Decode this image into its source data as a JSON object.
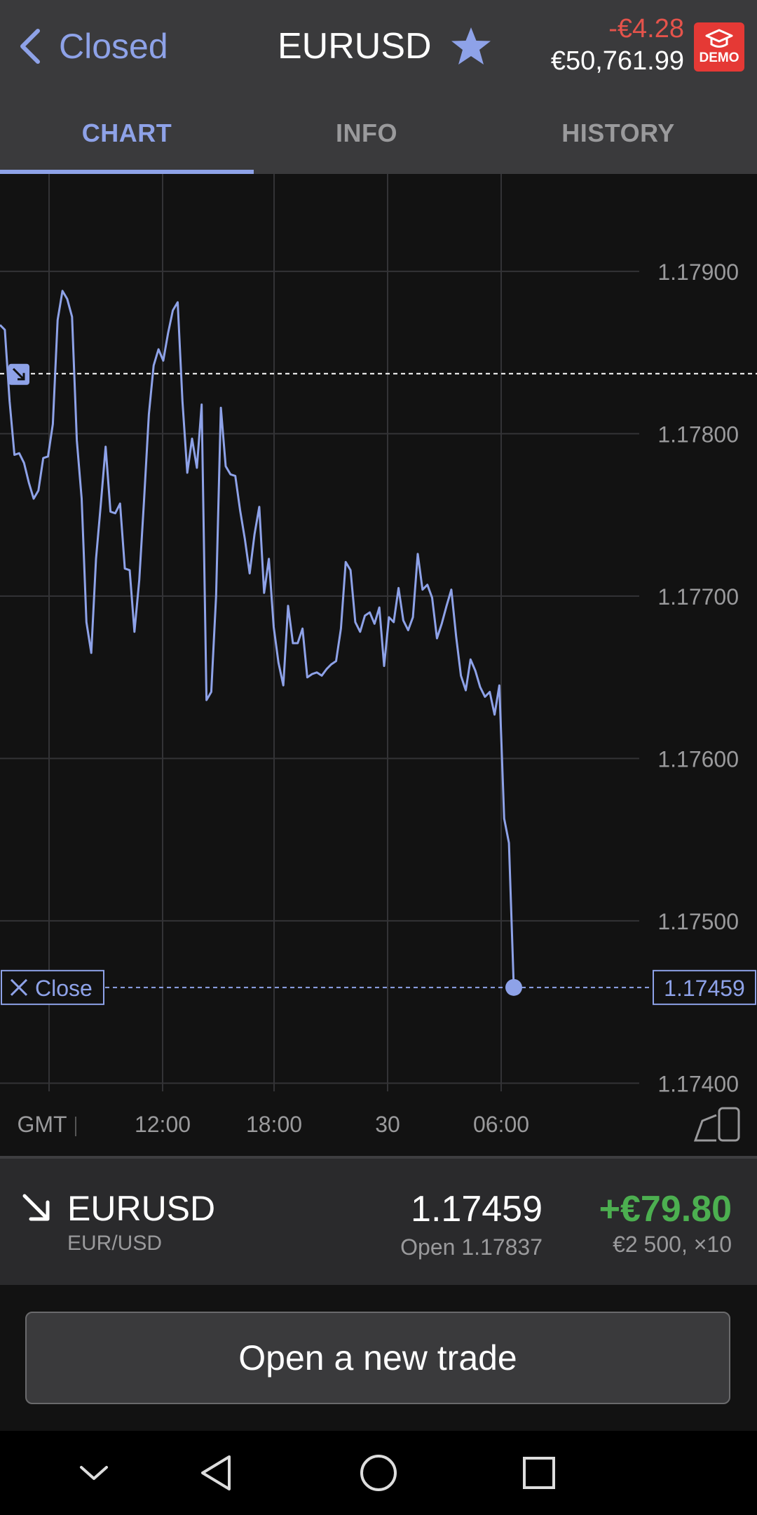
{
  "header": {
    "back_label": "Closed",
    "symbol": "EURUSD",
    "pl": "-€4.28",
    "balance": "€50,761.99",
    "demo_label": "DEMO"
  },
  "tabs": [
    {
      "label": "CHART",
      "active": true
    },
    {
      "label": "INFO",
      "active": false
    },
    {
      "label": "HISTORY",
      "active": false
    }
  ],
  "chart_data": {
    "type": "line",
    "y_ticks": [
      "1.17900",
      "1.17800",
      "1.17700",
      "1.17600",
      "1.17500",
      "1.17400"
    ],
    "x_ticks": [
      "GMT",
      "12:00",
      "18:00",
      "30",
      "06:00"
    ],
    "ylim": [
      1.17395,
      1.1796
    ],
    "open_level": 1.17837,
    "current_level": 1.17459,
    "current_label": "1.17459",
    "close_label": "Close",
    "series": [
      {
        "values": [
          1.17867,
          1.17864,
          1.1782,
          1.17787,
          1.17788,
          1.17782,
          1.1777,
          1.1776,
          1.17765,
          1.17785,
          1.17786,
          1.17806,
          1.1787,
          1.17888,
          1.17883,
          1.17872,
          1.17796,
          1.1776,
          1.17684,
          1.17665,
          1.17723,
          1.17757,
          1.17792,
          1.17752,
          1.17751,
          1.17757,
          1.17717,
          1.17716,
          1.17678,
          1.1771,
          1.17759,
          1.17812,
          1.17842,
          1.17852,
          1.17845,
          1.17862,
          1.17876,
          1.17881,
          1.1782,
          1.17776,
          1.17797,
          1.17779,
          1.17818,
          1.17636,
          1.17641,
          1.177,
          1.17816,
          1.1778,
          1.17775,
          1.17774,
          1.17753,
          1.17735,
          1.17714,
          1.17738,
          1.17755,
          1.17702,
          1.17723,
          1.17681,
          1.17659,
          1.17645,
          1.17694,
          1.17671,
          1.17671,
          1.1768,
          1.1765,
          1.17652,
          1.17653,
          1.17651,
          1.17655,
          1.17658,
          1.1766,
          1.1768,
          1.17721,
          1.17716,
          1.17684,
          1.17678,
          1.17688,
          1.1769,
          1.17683,
          1.17693,
          1.17657,
          1.17687,
          1.17684,
          1.17705,
          1.17685,
          1.17679,
          1.17687,
          1.17726,
          1.17704,
          1.17707,
          1.17699,
          1.17674,
          1.17683,
          1.17694,
          1.17704,
          1.17675,
          1.17651,
          1.17642,
          1.17661,
          1.17654,
          1.17644,
          1.17638,
          1.17641,
          1.17627,
          1.17645,
          1.17563,
          1.17548,
          1.17459
        ]
      }
    ]
  },
  "position": {
    "symbol": "EURUSD",
    "pair": "EUR/USD",
    "price": "1.17459",
    "open": "Open 1.17837",
    "profit": "+€79.80",
    "size": "€2 500, ×10"
  },
  "footer": {
    "new_trade_label": "Open a new trade"
  },
  "colors": {
    "accent": "#8ea2e8",
    "loss": "#e5534b",
    "profit": "#4caf50",
    "demo": "#e53935"
  }
}
